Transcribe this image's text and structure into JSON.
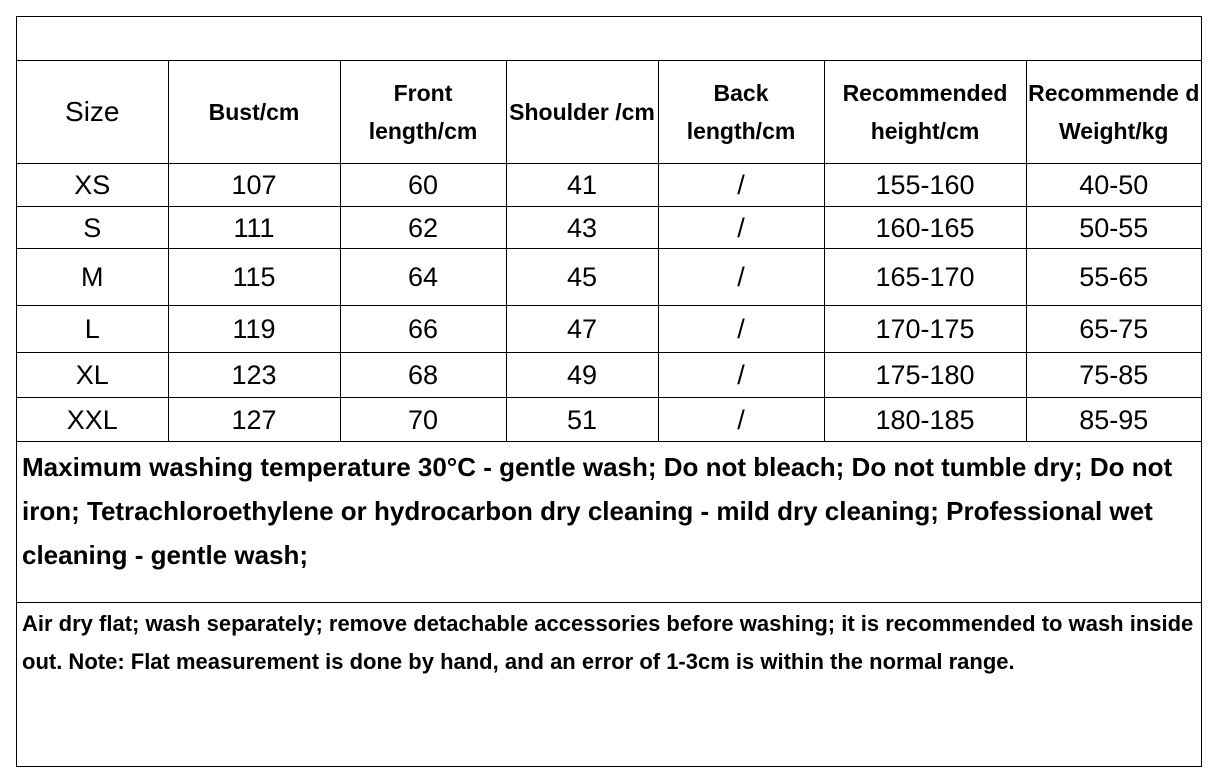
{
  "table": {
    "headers": [
      "Size",
      "Bust/cm",
      "Front length/cm",
      "Shoulder /cm",
      "Back length/cm",
      "Recommended height/cm",
      "Recommende d Weight/kg"
    ],
    "rows": [
      [
        "XS",
        "107",
        "60",
        "41",
        "/",
        "155-160",
        "40-50"
      ],
      [
        "S",
        "111",
        "62",
        "43",
        "/",
        "160-165",
        "50-55"
      ],
      [
        "M",
        "115",
        "64",
        "45",
        "/",
        "165-170",
        "55-65"
      ],
      [
        "L",
        "119",
        "66",
        "47",
        "/",
        "170-175",
        "65-75"
      ],
      [
        "XL",
        "123",
        "68",
        "49",
        "/",
        "175-180",
        "75-85"
      ],
      [
        "XXL",
        "127",
        "70",
        "51",
        "/",
        "180-185",
        "85-95"
      ]
    ]
  },
  "care": {
    "text": "Maximum washing temperature 30°C - gentle wash; Do not bleach; Do not tumble dry; Do not iron; Tetrachloroethylene or hydrocarbon dry cleaning - mild dry cleaning; Professional wet cleaning - gentle wash;"
  },
  "note": {
    "text": "Air dry flat; wash separately; remove detachable accessories before washing; it is recommended to wash inside out. Note: Flat measurement is done by hand, and an error of 1-3cm is within the normal range."
  }
}
